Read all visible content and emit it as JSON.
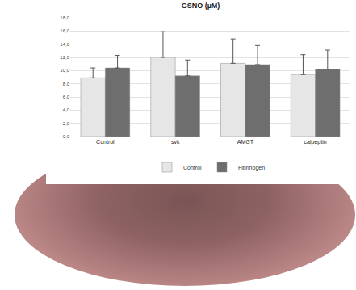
{
  "chart_data": {
    "type": "bar",
    "title": "GSNO (µM)",
    "categories": [
      "Control",
      "svk",
      "AMGT",
      "calpeptin"
    ],
    "series": [
      {
        "name": "Control",
        "color": "#e6e6e6",
        "values": [
          8.9,
          12.0,
          11.1,
          9.4
        ],
        "error": [
          1.5,
          3.9,
          3.7,
          3.0
        ]
      },
      {
        "name": "Fibrinogen",
        "color": "#6e6e6e",
        "values": [
          10.4,
          9.2,
          10.9,
          10.2
        ],
        "error": [
          1.9,
          2.4,
          2.9,
          2.9
        ]
      }
    ],
    "ylim": [
      0,
      18
    ],
    "yticks": [
      {
        "value": 0,
        "label": "0,0"
      },
      {
        "value": 2,
        "label": "2,0"
      },
      {
        "value": 4,
        "label": "4,0"
      },
      {
        "value": 6,
        "label": "6,0"
      },
      {
        "value": 8,
        "label": "8,0"
      },
      {
        "value": 10,
        "label": "10,0"
      },
      {
        "value": 12,
        "label": "12,0"
      },
      {
        "value": 14,
        "label": "14,0"
      },
      {
        "value": 16,
        "label": "16,0"
      },
      {
        "value": 18,
        "label": "18,0"
      }
    ],
    "grid": true,
    "legend": "bottom"
  }
}
